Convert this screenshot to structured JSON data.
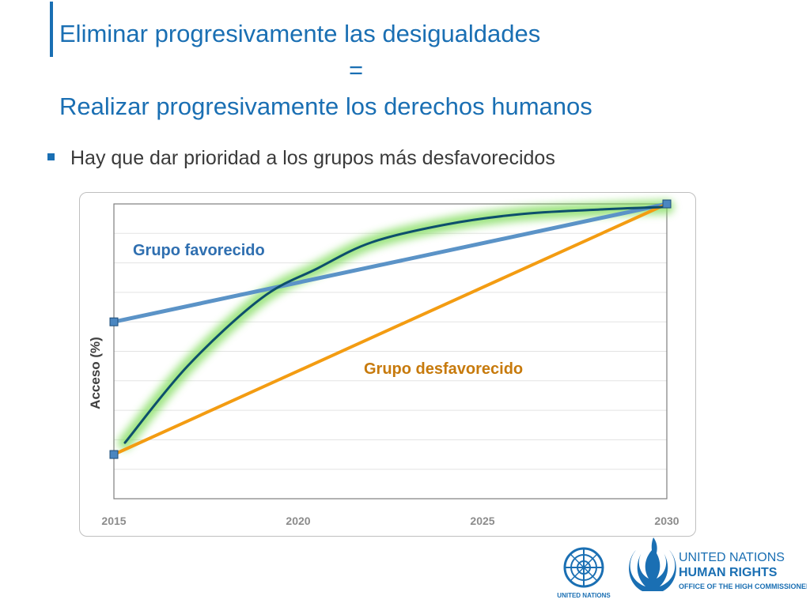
{
  "slide": {
    "title_line1": "Eliminar progresivamente las desigualdades",
    "title_line2": "=",
    "title_line3": "Realizar progresivamente los derechos humanos",
    "bullet": "Hay que dar prioridad a los grupos más desfavorecidos"
  },
  "logos": {
    "un_label": "UNITED NATIONS",
    "hr_line1": "UNITED NATIONS",
    "hr_line2": "HUMAN RIGHTS",
    "hr_line3": "OFFICE OF THE HIGH COMMISSIONER"
  },
  "colors": {
    "accent": "#1a6fb3",
    "favorecido": "#5b93c7",
    "desfavorecido": "#f39c12",
    "curve": "#0d4f6c",
    "glow": "#7fdc5a"
  },
  "chart_data": {
    "type": "line",
    "title": "",
    "xlabel": "",
    "ylabel": "Acceso (%)",
    "xlim": [
      2015,
      2030
    ],
    "ylim": [
      0,
      100
    ],
    "x_ticks": [
      2015,
      2020,
      2025,
      2030
    ],
    "grid": true,
    "series": [
      {
        "name": "Grupo favorecido",
        "points": [
          [
            2015,
            60
          ],
          [
            2030,
            100
          ]
        ]
      },
      {
        "name": "Grupo desfavorecido",
        "points": [
          [
            2015,
            15
          ],
          [
            2030,
            100
          ]
        ]
      },
      {
        "name": "",
        "points": [
          [
            2015.3,
            19
          ],
          [
            2017,
            45
          ],
          [
            2019,
            68
          ],
          [
            2020.5,
            78
          ],
          [
            2022,
            87
          ],
          [
            2024,
            93
          ],
          [
            2026,
            96.5
          ],
          [
            2028,
            98
          ],
          [
            2030,
            99
          ]
        ]
      }
    ]
  }
}
